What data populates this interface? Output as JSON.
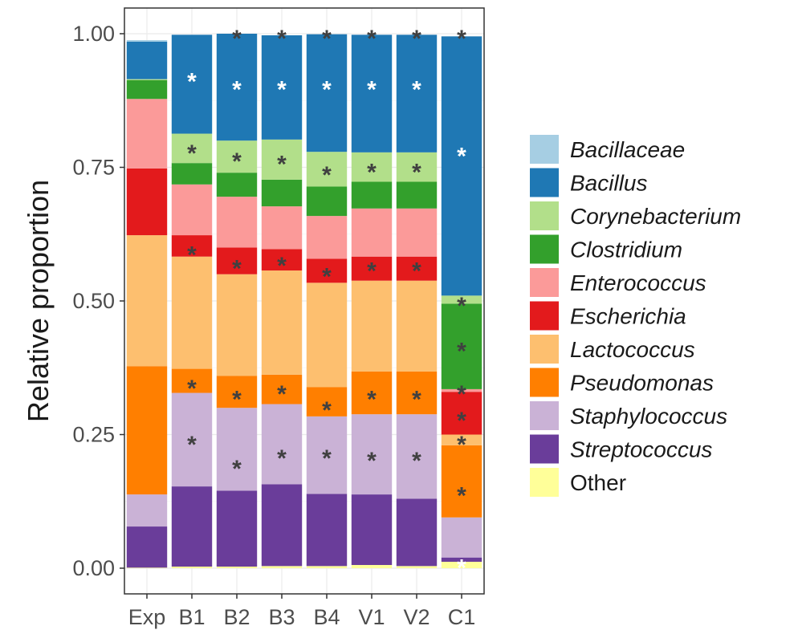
{
  "chart_data": {
    "type": "bar",
    "stacked": true,
    "ylabel": "Relative proportion",
    "xlabel": "",
    "ylim": [
      0,
      1
    ],
    "yticks": [
      "0.00",
      "0.25",
      "0.50",
      "0.75",
      "1.00"
    ],
    "ytick_values": [
      0,
      0.25,
      0.5,
      0.75,
      1.0
    ],
    "categories": [
      "Exp",
      "B1",
      "B2",
      "B3",
      "B4",
      "V1",
      "V2",
      "C1"
    ],
    "grid": true,
    "legend_position": "right",
    "series": [
      {
        "name": "Bacillaceae",
        "italic": true,
        "color": "#a6cee3",
        "values": [
          0.003,
          0,
          0,
          0,
          0,
          0,
          0,
          0
        ]
      },
      {
        "name": "Bacillus",
        "italic": true,
        "color": "#1f78b4",
        "values": [
          0.07,
          0.185,
          0.2,
          0.195,
          0.22,
          0.22,
          0.22,
          0.485
        ]
      },
      {
        "name": "Corynebacterium",
        "italic": true,
        "color": "#b2df8a",
        "values": [
          0.002,
          0.055,
          0.06,
          0.075,
          0.065,
          0.055,
          0.055,
          0.015
        ]
      },
      {
        "name": "Clostridium",
        "italic": true,
        "color": "#33a02c",
        "values": [
          0.035,
          0.04,
          0.045,
          0.05,
          0.055,
          0.05,
          0.05,
          0.16
        ]
      },
      {
        "name": "Enterococcus",
        "italic": true,
        "color": "#fb9a99",
        "values": [
          0.13,
          0.095,
          0.095,
          0.08,
          0.08,
          0.09,
          0.09,
          0.005
        ]
      },
      {
        "name": "Escherichia",
        "italic": true,
        "color": "#e31a1c",
        "values": [
          0.125,
          0.04,
          0.05,
          0.04,
          0.045,
          0.045,
          0.045,
          0.08
        ]
      },
      {
        "name": "Lactococcus",
        "italic": true,
        "color": "#fdbf6f",
        "values": [
          0.245,
          0.21,
          0.19,
          0.195,
          0.195,
          0.17,
          0.17,
          0.02
        ]
      },
      {
        "name": "Pseudomonas",
        "italic": true,
        "color": "#ff7f00",
        "values": [
          0.24,
          0.045,
          0.06,
          0.055,
          0.055,
          0.08,
          0.08,
          0.135
        ]
      },
      {
        "name": "Staphylococcus",
        "italic": true,
        "color": "#cab2d6",
        "values": [
          0.06,
          0.175,
          0.155,
          0.15,
          0.145,
          0.15,
          0.158,
          0.075
        ]
      },
      {
        "name": "Streptococcus",
        "italic": true,
        "color": "#6a3d9a",
        "values": [
          0.077,
          0.15,
          0.142,
          0.153,
          0.135,
          0.132,
          0.126,
          0.008
        ]
      },
      {
        "name": "Other",
        "italic": false,
        "color": "#ffff99",
        "values": [
          0.001,
          0.003,
          0.003,
          0.004,
          0.004,
          0.006,
          0.004,
          0.012
        ]
      }
    ],
    "significance_marker": "*",
    "stars": [
      {
        "col": 1,
        "y": 0.92,
        "light": true
      },
      {
        "col": 1,
        "y": 0.785,
        "light": false
      },
      {
        "col": 1,
        "y": 0.595,
        "light": false
      },
      {
        "col": 1,
        "y": 0.345,
        "light": false
      },
      {
        "col": 1,
        "y": 0.24,
        "light": false
      },
      {
        "col": 2,
        "y": 1.0,
        "light": false
      },
      {
        "col": 2,
        "y": 0.905,
        "light": true
      },
      {
        "col": 2,
        "y": 0.77,
        "light": false
      },
      {
        "col": 2,
        "y": 0.57,
        "light": false
      },
      {
        "col": 2,
        "y": 0.325,
        "light": false
      },
      {
        "col": 2,
        "y": 0.195,
        "light": false
      },
      {
        "col": 3,
        "y": 1.0,
        "light": false
      },
      {
        "col": 3,
        "y": 0.905,
        "light": true
      },
      {
        "col": 3,
        "y": 0.765,
        "light": false
      },
      {
        "col": 3,
        "y": 0.575,
        "light": false
      },
      {
        "col": 3,
        "y": 0.335,
        "light": false
      },
      {
        "col": 3,
        "y": 0.215,
        "light": false
      },
      {
        "col": 4,
        "y": 1.0,
        "light": false
      },
      {
        "col": 4,
        "y": 0.905,
        "light": true
      },
      {
        "col": 4,
        "y": 0.745,
        "light": false
      },
      {
        "col": 4,
        "y": 0.555,
        "light": false
      },
      {
        "col": 4,
        "y": 0.305,
        "light": false
      },
      {
        "col": 4,
        "y": 0.215,
        "light": false
      },
      {
        "col": 5,
        "y": 1.0,
        "light": false
      },
      {
        "col": 5,
        "y": 0.905,
        "light": true
      },
      {
        "col": 5,
        "y": 0.75,
        "light": false
      },
      {
        "col": 5,
        "y": 0.565,
        "light": false
      },
      {
        "col": 5,
        "y": 0.325,
        "light": false
      },
      {
        "col": 5,
        "y": 0.21,
        "light": false
      },
      {
        "col": 6,
        "y": 1.0,
        "light": false
      },
      {
        "col": 6,
        "y": 0.905,
        "light": true
      },
      {
        "col": 6,
        "y": 0.75,
        "light": false
      },
      {
        "col": 6,
        "y": 0.565,
        "light": false
      },
      {
        "col": 6,
        "y": 0.325,
        "light": false
      },
      {
        "col": 6,
        "y": 0.21,
        "light": false
      },
      {
        "col": 7,
        "y": 1.0,
        "light": false
      },
      {
        "col": 7,
        "y": 0.78,
        "light": true
      },
      {
        "col": 7,
        "y": 0.5,
        "light": false
      },
      {
        "col": 7,
        "y": 0.415,
        "light": false
      },
      {
        "col": 7,
        "y": 0.335,
        "light": false
      },
      {
        "col": 7,
        "y": 0.285,
        "light": false
      },
      {
        "col": 7,
        "y": 0.24,
        "light": false
      },
      {
        "col": 7,
        "y": 0.145,
        "light": false
      },
      {
        "col": 7,
        "y": 0.01,
        "light": true
      }
    ]
  }
}
